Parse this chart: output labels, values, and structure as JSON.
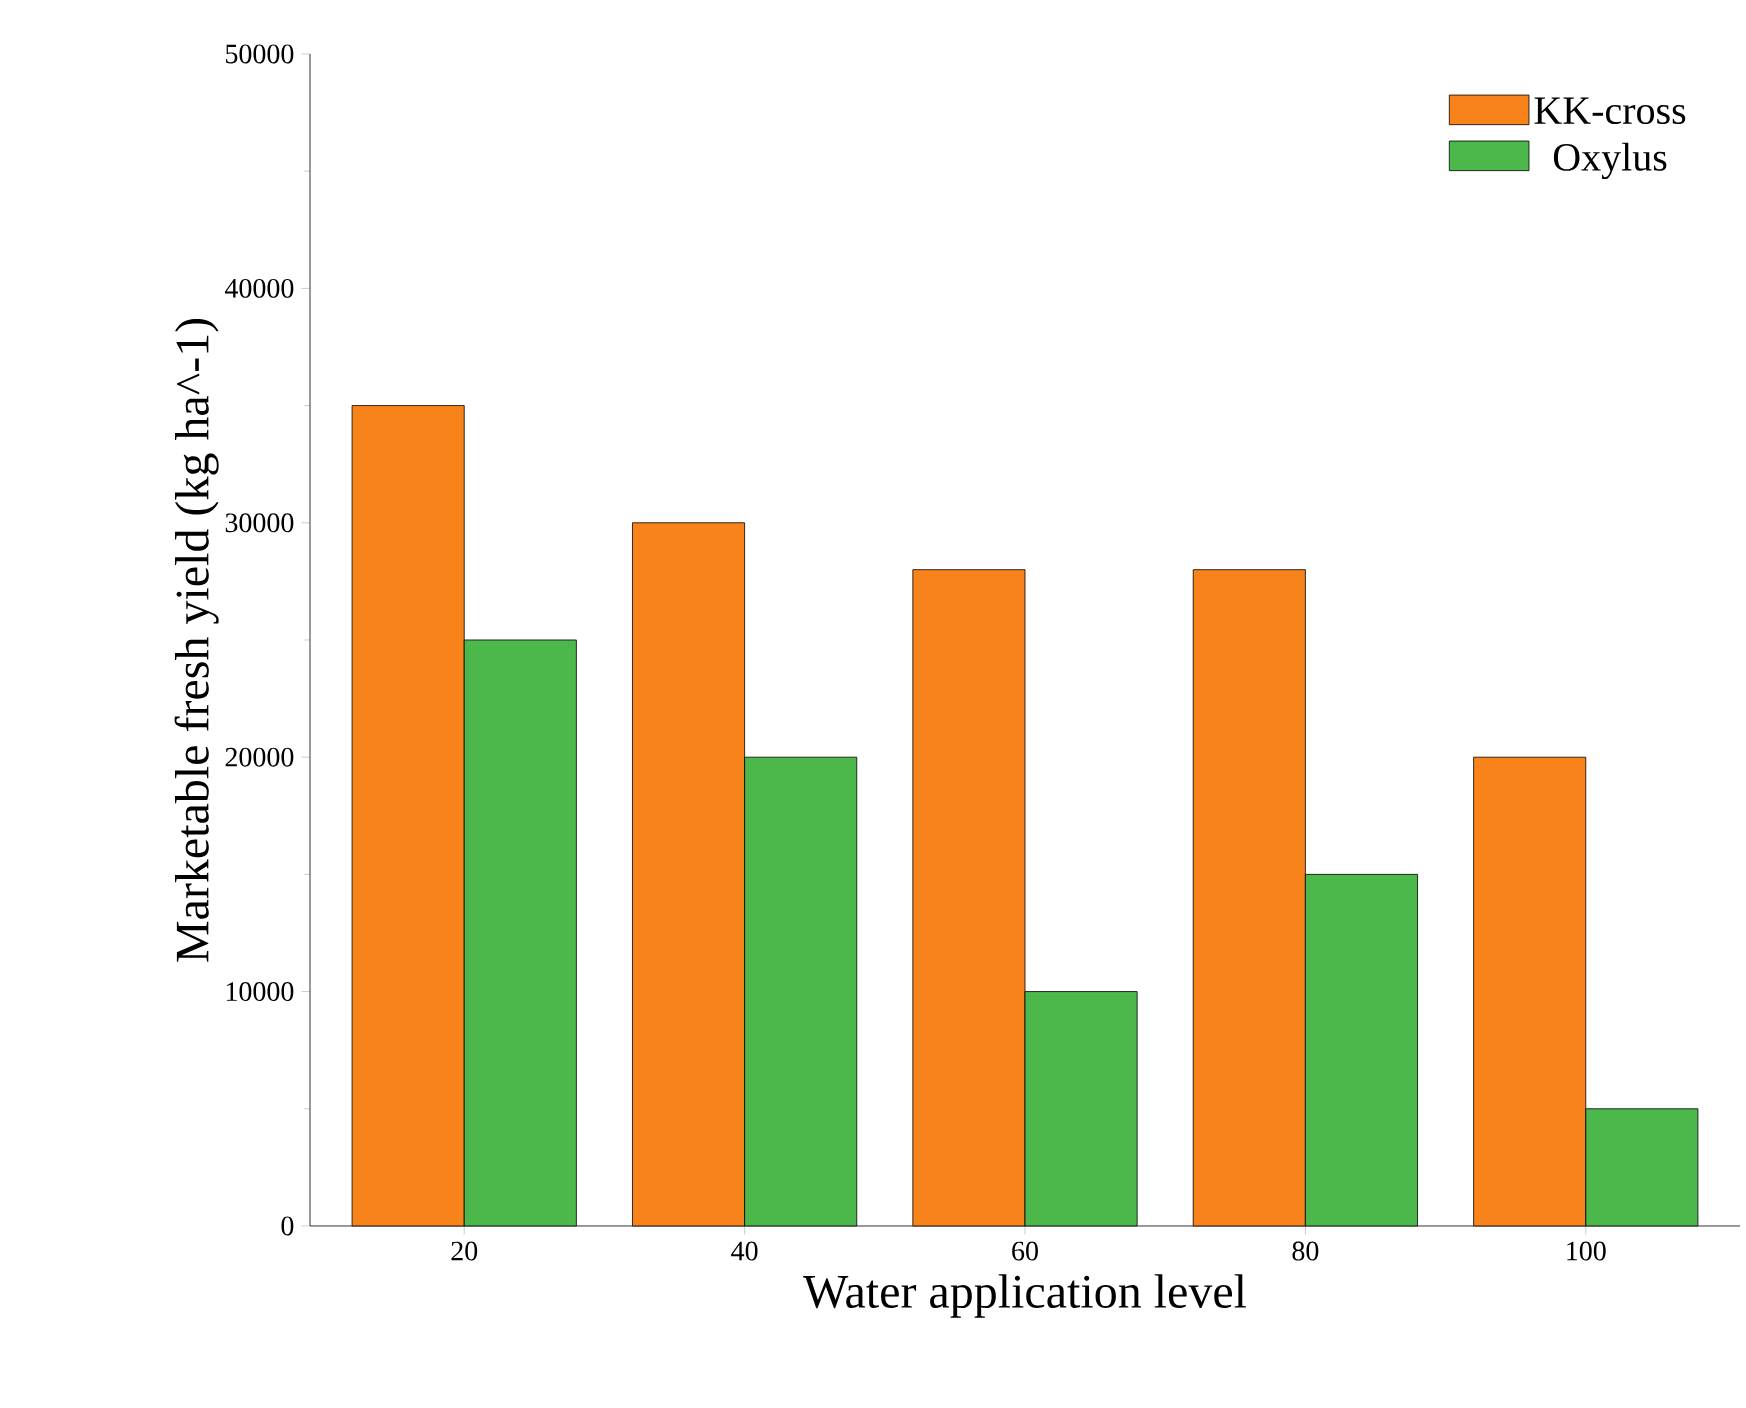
{
  "chart_data": {
    "type": "bar",
    "xlabel": "Water application level",
    "ylabel": "Marketable fresh yield (kg ha^-1)",
    "categories": [
      "20",
      "40",
      "60",
      "80",
      "100"
    ],
    "series": [
      {
        "name": "KK-cross",
        "color": "#f8831a",
        "values": [
          35000,
          30000,
          28000,
          28000,
          20000
        ]
      },
      {
        "name": "Oxylus",
        "color": "#4cb84c",
        "values": [
          25000,
          20000,
          10000,
          15000,
          5000
        ]
      }
    ],
    "ylim": [
      0,
      50000
    ],
    "yticks": [
      0,
      10000,
      20000,
      30000,
      40000,
      50000
    ],
    "grid": false,
    "legend": "top right"
  }
}
